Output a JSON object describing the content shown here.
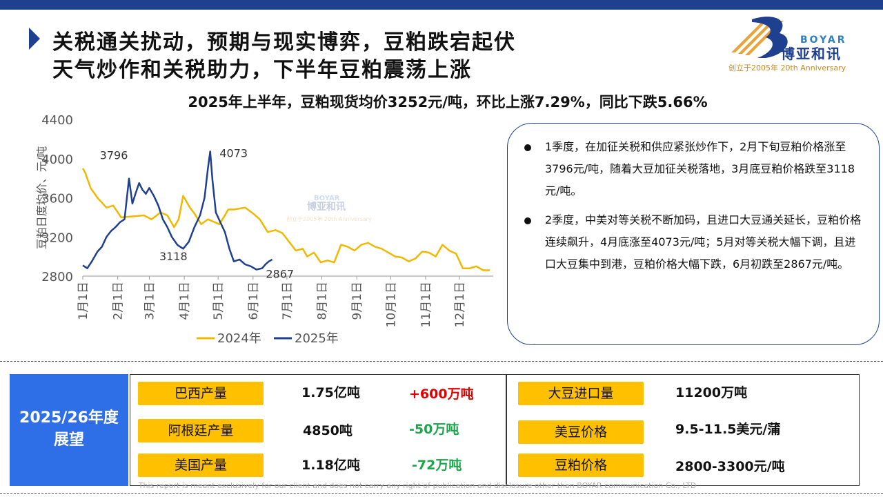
{
  "header": {
    "title_line1": "关税通关扰动，预期与现实博弈，豆粕跌宕起伏",
    "title_line2": "天气炒作和关税助力，下半年豆粕震荡上涨"
  },
  "logo": {
    "en": "BOYAR",
    "cn": "博亚和讯",
    "sub": "创立于2005年 20th Anniversary",
    "watermark_cn": "博亚和讯",
    "watermark_en": "BOYAR",
    "watermark_sub": "创立于2005年 20th Anniversary"
  },
  "subtitle": "2025年上半年，豆粕现货均价3252元/吨，环比上涨7.29%，同比下跌5.66%",
  "chart_data": {
    "type": "line",
    "ylabel": "豆粕日度均价、元/吨",
    "ylim": [
      2800,
      4400
    ],
    "yticks": [
      "2800",
      "3200",
      "3600",
      "4000",
      "4400"
    ],
    "xticks": [
      "1月1日",
      "2月1日",
      "3月1日",
      "4月1日",
      "5月1日",
      "6月1日",
      "7月1日",
      "8月1日",
      "9月1日",
      "10月1日",
      "11月1日",
      "12月1日"
    ],
    "series": [
      {
        "name": "2024年",
        "color": "#f0b800",
        "x": [
          1,
          3,
          8,
          14,
          22,
          28,
          35,
          45,
          55,
          62,
          70,
          76,
          82,
          86,
          90,
          96,
          100,
          106,
          112,
          118,
          122,
          126,
          130,
          135,
          140,
          145,
          152,
          158,
          165,
          172,
          178,
          184,
          190,
          196,
          200,
          206,
          212,
          218,
          224,
          230,
          236,
          242,
          248,
          254,
          260,
          266,
          272,
          278,
          284,
          290,
          296,
          302,
          308,
          314,
          320,
          326,
          332,
          338,
          344,
          350,
          356,
          362
        ],
        "values": [
          3900,
          3860,
          3700,
          3600,
          3500,
          3520,
          3400,
          3410,
          3420,
          3380,
          3450,
          3420,
          3300,
          3380,
          3620,
          3500,
          3440,
          3330,
          3380,
          3350,
          3330,
          3400,
          3480,
          3480,
          3490,
          3500,
          3440,
          3380,
          3250,
          3270,
          3240,
          3150,
          3060,
          3080,
          3000,
          3040,
          2940,
          2960,
          2940,
          3120,
          3100,
          3060,
          3120,
          3140,
          3100,
          3080,
          3040,
          3000,
          2990,
          2950,
          2980,
          3050,
          3040,
          3000,
          3120,
          3060,
          3030,
          2880,
          2880,
          2900,
          2860,
          2860
        ]
      },
      {
        "name": "2025年",
        "color": "#1f3f8f",
        "x": [
          1,
          5,
          9,
          14,
          18,
          22,
          26,
          30,
          34,
          38,
          42,
          45,
          48,
          51,
          54,
          57,
          60,
          64,
          68,
          72,
          76,
          80,
          85,
          90,
          95,
          100,
          105,
          109,
          112,
          114,
          116,
          119,
          123,
          127,
          131,
          135,
          140,
          145,
          150,
          155,
          160,
          163,
          166,
          169
        ],
        "values": [
          2910,
          2880,
          2950,
          3050,
          3100,
          3200,
          3260,
          3300,
          3350,
          3380,
          3796,
          3540,
          3650,
          3750,
          3680,
          3640,
          3700,
          3620,
          3520,
          3380,
          3300,
          3200,
          3118,
          3080,
          3150,
          3300,
          3420,
          3600,
          3900,
          4073,
          3780,
          3450,
          3350,
          3250,
          3080,
          2950,
          2970,
          2920,
          2900,
          2867,
          2880,
          2920,
          2950,
          2970
        ]
      }
    ],
    "annotations": [
      {
        "x": 42,
        "y": 3796,
        "text": "3796"
      },
      {
        "x": 114,
        "y": 4073,
        "text": "4073"
      },
      {
        "x": 85,
        "y": 3118,
        "text": "3118"
      },
      {
        "x": 155,
        "y": 2867,
        "text": "2867"
      }
    ],
    "legend_position": "bottom"
  },
  "notes": [
    "1季度，在加征关税和供应紧张炒作下，2月下旬豆粕价格涨至3796元/吨，随着大豆加征关税落地，3月底豆粕价格跌至3118元/吨。",
    "2季度，中美对等关税不断加码，且进口大豆通关延长，豆粕价格连续飙升，4月底涨至4073元/吨；5月对等关税大幅下调，且进口大豆集中到港，豆粕价格大幅下跌，6月初跌至2867元/吨。"
  ],
  "outlook": {
    "title_line1": "2025/26年度",
    "title_line2": "展望",
    "left": [
      {
        "label": "巴西产量",
        "value": "1.75亿吨",
        "change": "+600万吨",
        "change_color": "#e00000"
      },
      {
        "label": "阿根廷产量",
        "value": "4850吨",
        "change": "-50万吨",
        "change_color": "#1aa64b"
      },
      {
        "label": "美国产量",
        "value": "1.18亿吨",
        "change": "-72万吨",
        "change_color": "#1aa64b"
      }
    ],
    "right": [
      {
        "label": "大豆进口量",
        "value": "11200万吨"
      },
      {
        "label": "美豆价格",
        "value": "9.5-11.5美元/蒲"
      },
      {
        "label": "豆粕价格",
        "value": "2800-3300元/吨"
      }
    ]
  },
  "footer": "This report is meant exclusively for our client and does not carry any right of publication and disclosure other than BOYAR communication Co., LTD"
}
